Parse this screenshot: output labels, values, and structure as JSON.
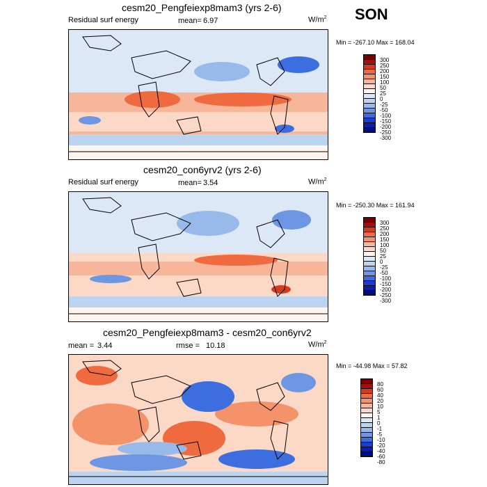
{
  "season": "SON",
  "panels": [
    {
      "title": "cesm20_Pengfeiexp8mam3 (yrs 2-6)",
      "left_label": "Residual surf energy",
      "stat_label": "mean=",
      "stat_value": "6.97",
      "units": "W/m",
      "units_sup": "2",
      "minmax": "Min = -267.10 Max = 168.04",
      "colorbar": [
        "300",
        "250",
        "200",
        "150",
        "100",
        "50",
        "25",
        "0",
        "-25",
        "-50",
        "-100",
        "-150",
        "-200",
        "-250",
        "-300"
      ]
    },
    {
      "title": "cesm20_con6yrv2 (yrs 2-6)",
      "left_label": "Residual surf energy",
      "stat_label": "mean=",
      "stat_value": "3.54",
      "units": "W/m",
      "units_sup": "2",
      "minmax": "Min = -250.30 Max = 161.94",
      "colorbar": [
        "300",
        "250",
        "200",
        "150",
        "100",
        "50",
        "25",
        "0",
        "-25",
        "-50",
        "-100",
        "-150",
        "-200",
        "-250",
        "-300"
      ]
    },
    {
      "title": "cesm20_Pengfeiexp8mam3 - cesm20_con6yrv2",
      "mean_label": "mean =",
      "mean_value": "3.44",
      "rmse_label": "rmse =",
      "rmse_value": "10.18",
      "units": "W/m",
      "units_sup": "2",
      "minmax": "Min = -44.98 Max =  57.82",
      "colorbar": [
        "80",
        "60",
        "40",
        "20",
        "10",
        "5",
        "1",
        "0",
        "-1",
        "-5",
        "-10",
        "-20",
        "-40",
        "-60",
        "-80"
      ]
    }
  ],
  "colors": {
    "scale": [
      "#7a0000",
      "#a50f0f",
      "#d73a1a",
      "#ef6b3f",
      "#f4926a",
      "#f7b69a",
      "#fbd9c6",
      "#fff5ee",
      "#dce8f5",
      "#bcd4ef",
      "#98baea",
      "#6e97e3",
      "#3d6ee0",
      "#1a3fd0",
      "#0a1ea8",
      "#000e7a"
    ]
  }
}
